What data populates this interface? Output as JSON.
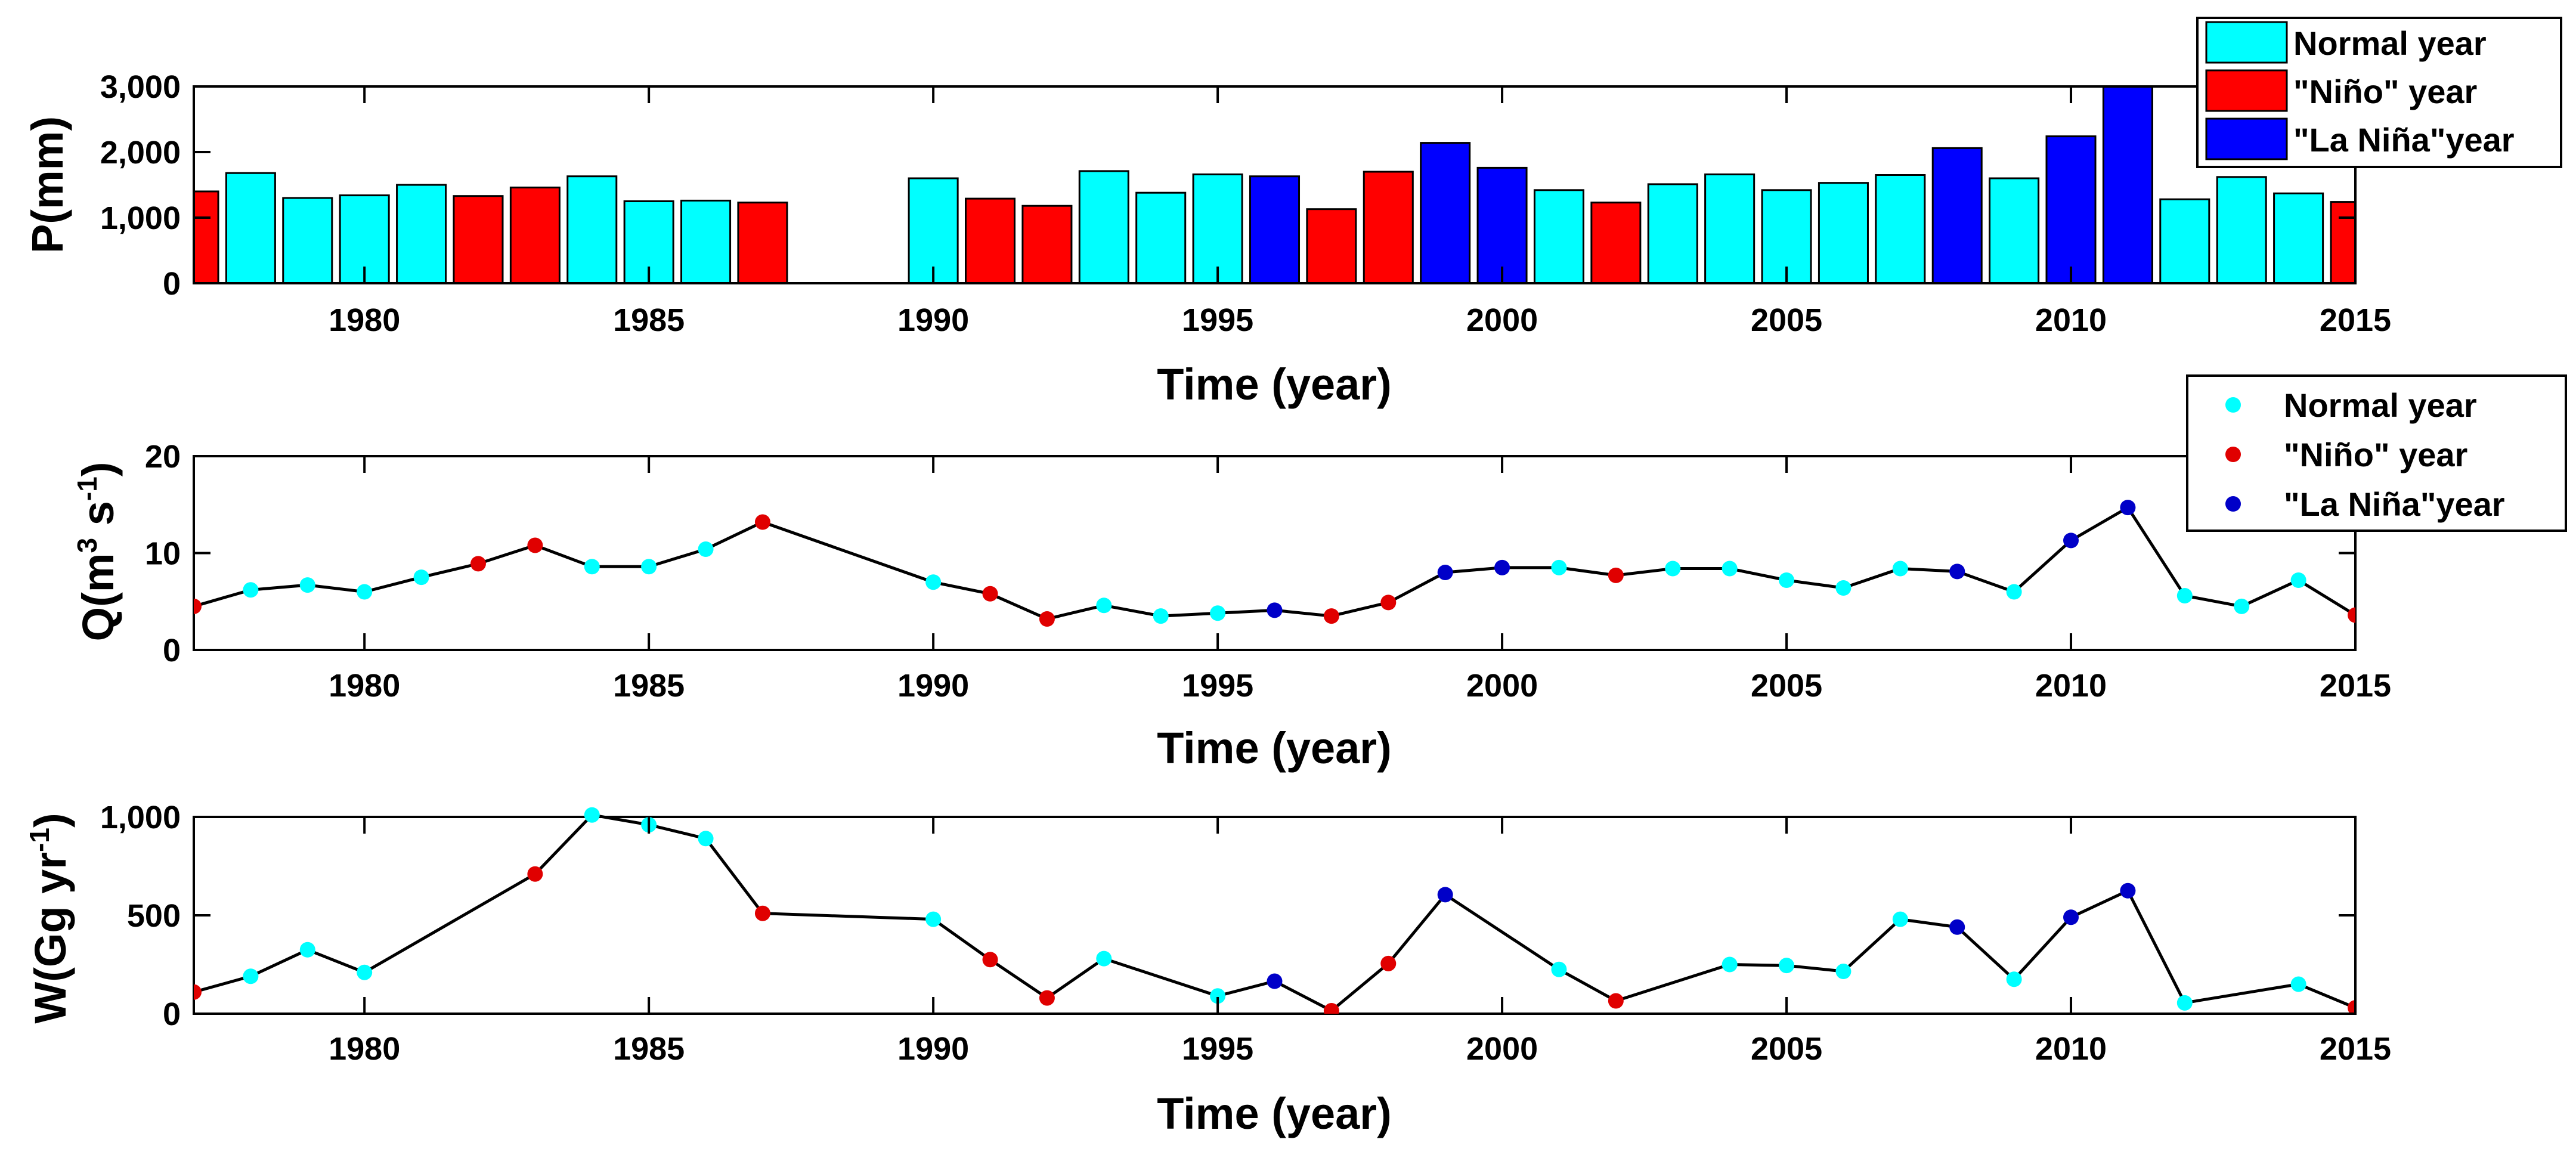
{
  "colors": {
    "normal": "#00ffff",
    "nino": "#ff0000",
    "nina": "#0000ff",
    "dot_normal": "#00ffff",
    "dot_nino": "#e00000",
    "dot_nina": "#0000c8",
    "line": "#000000"
  },
  "chart_data": [
    {
      "id": "p",
      "type": "bar",
      "title": "",
      "xlabel": "Time (year)",
      "ylabel": "P(mm)",
      "xlim": [
        1977,
        2015
      ],
      "ylim": [
        0,
        3000
      ],
      "xticks": [
        1980,
        1985,
        1990,
        1995,
        2000,
        2005,
        2010,
        2015
      ],
      "yticks": [
        0,
        1000,
        2000,
        3000
      ],
      "ytick_labels": [
        "0",
        "1,000",
        "2,000",
        "3,000"
      ],
      "legend": {
        "position": "top-right",
        "entries": [
          {
            "label": "Normal year",
            "class": "normal"
          },
          {
            "label": "\"Niño\" year",
            "class": "nino"
          },
          {
            "label": "\"La Niña\"year",
            "class": "nina"
          }
        ]
      },
      "points": [
        {
          "x": 1977,
          "y": 1400,
          "c": "nino"
        },
        {
          "x": 1978,
          "y": 1680,
          "c": "normal"
        },
        {
          "x": 1979,
          "y": 1300,
          "c": "normal"
        },
        {
          "x": 1980,
          "y": 1340,
          "c": "normal"
        },
        {
          "x": 1981,
          "y": 1500,
          "c": "normal"
        },
        {
          "x": 1982,
          "y": 1330,
          "c": "nino"
        },
        {
          "x": 1983,
          "y": 1460,
          "c": "nino"
        },
        {
          "x": 1984,
          "y": 1630,
          "c": "normal"
        },
        {
          "x": 1985,
          "y": 1250,
          "c": "normal"
        },
        {
          "x": 1986,
          "y": 1260,
          "c": "normal"
        },
        {
          "x": 1987,
          "y": 1230,
          "c": "nino"
        },
        {
          "x": 1990,
          "y": 1600,
          "c": "normal"
        },
        {
          "x": 1991,
          "y": 1290,
          "c": "nino"
        },
        {
          "x": 1992,
          "y": 1180,
          "c": "nino"
        },
        {
          "x": 1993,
          "y": 1710,
          "c": "normal"
        },
        {
          "x": 1994,
          "y": 1380,
          "c": "normal"
        },
        {
          "x": 1995,
          "y": 1660,
          "c": "normal"
        },
        {
          "x": 1996,
          "y": 1630,
          "c": "nina"
        },
        {
          "x": 1997,
          "y": 1130,
          "c": "nino"
        },
        {
          "x": 1998,
          "y": 1700,
          "c": "nino"
        },
        {
          "x": 1999,
          "y": 2140,
          "c": "nina"
        },
        {
          "x": 2000,
          "y": 1760,
          "c": "nina"
        },
        {
          "x": 2001,
          "y": 1420,
          "c": "normal"
        },
        {
          "x": 2002,
          "y": 1230,
          "c": "nino"
        },
        {
          "x": 2003,
          "y": 1510,
          "c": "normal"
        },
        {
          "x": 2004,
          "y": 1660,
          "c": "normal"
        },
        {
          "x": 2005,
          "y": 1420,
          "c": "normal"
        },
        {
          "x": 2006,
          "y": 1530,
          "c": "normal"
        },
        {
          "x": 2007,
          "y": 1650,
          "c": "normal"
        },
        {
          "x": 2008,
          "y": 2060,
          "c": "nina"
        },
        {
          "x": 2009,
          "y": 1600,
          "c": "normal"
        },
        {
          "x": 2010,
          "y": 2240,
          "c": "nina"
        },
        {
          "x": 2011,
          "y": 3000,
          "c": "nina"
        },
        {
          "x": 2012,
          "y": 1280,
          "c": "normal"
        },
        {
          "x": 2013,
          "y": 1620,
          "c": "normal"
        },
        {
          "x": 2014,
          "y": 1370,
          "c": "normal"
        },
        {
          "x": 2015,
          "y": 1240,
          "c": "nino"
        }
      ]
    },
    {
      "id": "q",
      "type": "line",
      "title": "",
      "xlabel": "Time (year)",
      "ylabel_main": "Q(m",
      "ylabel_sup1": "3",
      "ylabel_mid": " s",
      "ylabel_sup2": "-1",
      "ylabel_end": ")",
      "xlim": [
        1977,
        2015
      ],
      "ylim": [
        0,
        20
      ],
      "xticks": [
        1980,
        1985,
        1990,
        1995,
        2000,
        2005,
        2010,
        2015
      ],
      "yticks": [
        0,
        10,
        20
      ],
      "ytick_labels": [
        "0",
        "10",
        "20"
      ],
      "legend": {
        "position": "top-right",
        "entries": [
          {
            "label": "Normal year",
            "class": "normal"
          },
          {
            "label": "\"Niño\" year",
            "class": "nino"
          },
          {
            "label": "\"La Niña\"year",
            "class": "nina"
          }
        ]
      },
      "points": [
        {
          "x": 1977,
          "y": 4.5,
          "c": "nino"
        },
        {
          "x": 1978,
          "y": 6.2,
          "c": "normal"
        },
        {
          "x": 1979,
          "y": 6.7,
          "c": "normal"
        },
        {
          "x": 1980,
          "y": 6.0,
          "c": "normal"
        },
        {
          "x": 1981,
          "y": 7.5,
          "c": "normal"
        },
        {
          "x": 1982,
          "y": 8.9,
          "c": "nino"
        },
        {
          "x": 1983,
          "y": 10.8,
          "c": "nino"
        },
        {
          "x": 1984,
          "y": 8.6,
          "c": "normal"
        },
        {
          "x": 1985,
          "y": 8.6,
          "c": "normal"
        },
        {
          "x": 1986,
          "y": 10.4,
          "c": "normal"
        },
        {
          "x": 1987,
          "y": 13.2,
          "c": "nino"
        },
        {
          "x": 1990,
          "y": 7.0,
          "c": "normal"
        },
        {
          "x": 1991,
          "y": 5.8,
          "c": "nino"
        },
        {
          "x": 1992,
          "y": 3.2,
          "c": "nino"
        },
        {
          "x": 1993,
          "y": 4.6,
          "c": "normal"
        },
        {
          "x": 1994,
          "y": 3.5,
          "c": "normal"
        },
        {
          "x": 1995,
          "y": 3.8,
          "c": "normal"
        },
        {
          "x": 1996,
          "y": 4.1,
          "c": "nina"
        },
        {
          "x": 1997,
          "y": 3.5,
          "c": "nino"
        },
        {
          "x": 1998,
          "y": 4.9,
          "c": "nino"
        },
        {
          "x": 1999,
          "y": 8.0,
          "c": "nina"
        },
        {
          "x": 2000,
          "y": 8.5,
          "c": "nina"
        },
        {
          "x": 2001,
          "y": 8.5,
          "c": "normal"
        },
        {
          "x": 2002,
          "y": 7.7,
          "c": "nino"
        },
        {
          "x": 2003,
          "y": 8.4,
          "c": "normal"
        },
        {
          "x": 2004,
          "y": 8.4,
          "c": "normal"
        },
        {
          "x": 2005,
          "y": 7.2,
          "c": "normal"
        },
        {
          "x": 2006,
          "y": 6.4,
          "c": "normal"
        },
        {
          "x": 2007,
          "y": 8.4,
          "c": "normal"
        },
        {
          "x": 2008,
          "y": 8.1,
          "c": "nina"
        },
        {
          "x": 2009,
          "y": 6.0,
          "c": "normal"
        },
        {
          "x": 2010,
          "y": 11.3,
          "c": "nina"
        },
        {
          "x": 2011,
          "y": 14.7,
          "c": "nina"
        },
        {
          "x": 2012,
          "y": 5.6,
          "c": "normal"
        },
        {
          "x": 2013,
          "y": 4.5,
          "c": "normal"
        },
        {
          "x": 2014,
          "y": 7.2,
          "c": "normal"
        },
        {
          "x": 2015,
          "y": 3.6,
          "c": "nino"
        }
      ]
    },
    {
      "id": "w",
      "type": "line",
      "title": "",
      "xlabel": "Time (year)",
      "ylabel_main": "W(Gg yr",
      "ylabel_sup1": "-1",
      "ylabel_mid": "",
      "ylabel_sup2": "",
      "ylabel_end": ")",
      "xlim": [
        1977,
        2015
      ],
      "ylim": [
        0,
        1000
      ],
      "xticks": [
        1980,
        1985,
        1990,
        1995,
        2000,
        2005,
        2010,
        2015
      ],
      "yticks": [
        0,
        500,
        1000
      ],
      "ytick_labels": [
        "0",
        "500",
        "1,000"
      ],
      "legend": null,
      "points": [
        {
          "x": 1977,
          "y": 110,
          "c": "nino"
        },
        {
          "x": 1978,
          "y": 190,
          "c": "normal"
        },
        {
          "x": 1979,
          "y": 325,
          "c": "normal"
        },
        {
          "x": 1980,
          "y": 210,
          "c": "normal"
        },
        {
          "x": 1983,
          "y": 710,
          "c": "nino"
        },
        {
          "x": 1984,
          "y": 1010,
          "c": "normal"
        },
        {
          "x": 1985,
          "y": 960,
          "c": "normal"
        },
        {
          "x": 1986,
          "y": 890,
          "c": "normal"
        },
        {
          "x": 1987,
          "y": 510,
          "c": "nino"
        },
        {
          "x": 1990,
          "y": 480,
          "c": "normal"
        },
        {
          "x": 1991,
          "y": 275,
          "c": "nino"
        },
        {
          "x": 1992,
          "y": 80,
          "c": "nino"
        },
        {
          "x": 1993,
          "y": 280,
          "c": "normal"
        },
        {
          "x": 1995,
          "y": 90,
          "c": "normal"
        },
        {
          "x": 1996,
          "y": 165,
          "c": "nina"
        },
        {
          "x": 1997,
          "y": 15,
          "c": "nino"
        },
        {
          "x": 1998,
          "y": 255,
          "c": "nino"
        },
        {
          "x": 1999,
          "y": 605,
          "c": "nina"
        },
        {
          "x": 2001,
          "y": 225,
          "c": "normal"
        },
        {
          "x": 2002,
          "y": 65,
          "c": "nino"
        },
        {
          "x": 2004,
          "y": 250,
          "c": "normal"
        },
        {
          "x": 2005,
          "y": 245,
          "c": "normal"
        },
        {
          "x": 2006,
          "y": 215,
          "c": "normal"
        },
        {
          "x": 2007,
          "y": 480,
          "c": "normal"
        },
        {
          "x": 2008,
          "y": 440,
          "c": "nina"
        },
        {
          "x": 2009,
          "y": 175,
          "c": "normal"
        },
        {
          "x": 2010,
          "y": 490,
          "c": "nina"
        },
        {
          "x": 2011,
          "y": 625,
          "c": "nina"
        },
        {
          "x": 2012,
          "y": 55,
          "c": "normal"
        },
        {
          "x": 2014,
          "y": 150,
          "c": "normal"
        },
        {
          "x": 2015,
          "y": 30,
          "c": "nino"
        }
      ]
    }
  ]
}
